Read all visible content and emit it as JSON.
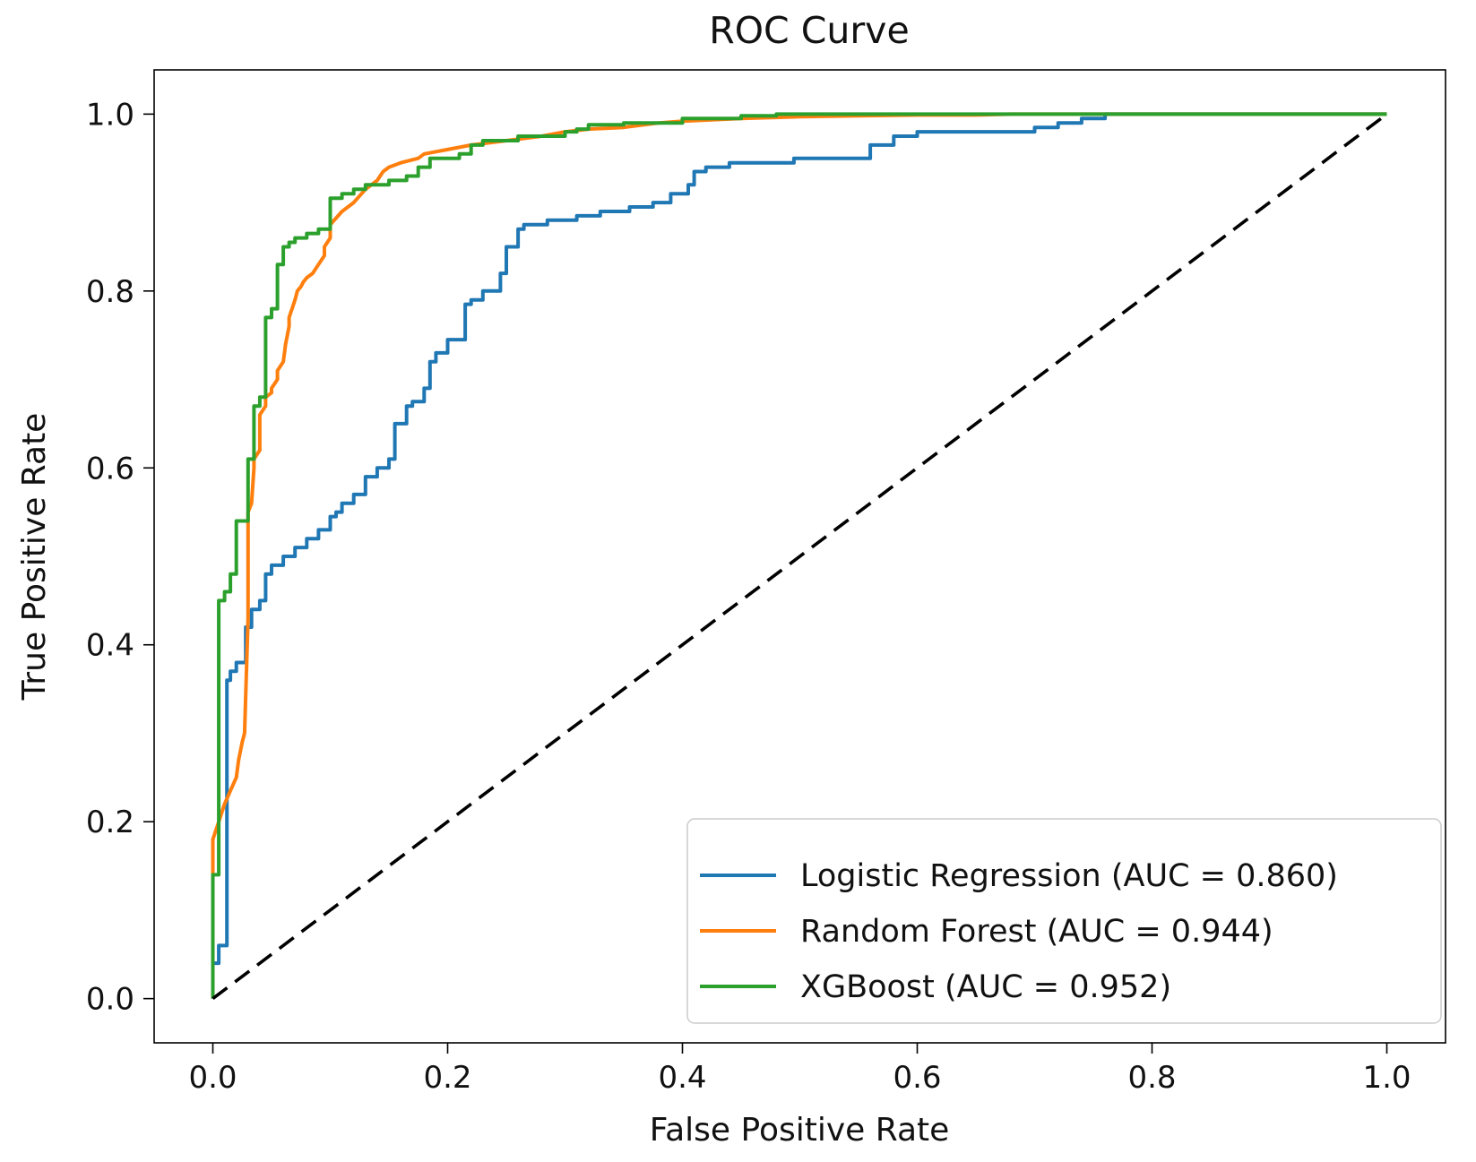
{
  "chart_data": {
    "type": "line",
    "title": "ROC Curve",
    "xlabel": "False Positive Rate",
    "ylabel": "True Positive Rate",
    "xlim": [
      -0.05,
      1.05
    ],
    "ylim": [
      -0.05,
      1.05
    ],
    "xticks": [
      "0.0",
      "0.2",
      "0.4",
      "0.6",
      "0.8",
      "1.0"
    ],
    "yticks": [
      "0.0",
      "0.2",
      "0.4",
      "0.6",
      "0.8",
      "1.0"
    ],
    "xtick_values": [
      0,
      0.2,
      0.4,
      0.6,
      0.8,
      1.0
    ],
    "ytick_values": [
      0,
      0.2,
      0.4,
      0.6,
      0.8,
      1.0
    ],
    "grid": false,
    "legend_position": "lower-right",
    "reference_line": {
      "x": [
        0,
        1
      ],
      "y": [
        0,
        1
      ],
      "style": "dashed",
      "color": "#000000"
    },
    "series": [
      {
        "name": "Logistic Regression (AUC = 0.860)",
        "color": "#1f77b4",
        "x": [
          0,
          0,
          0.005,
          0.005,
          0.012,
          0.012,
          0.015,
          0.015,
          0.02,
          0.02,
          0.028,
          0.028,
          0.033,
          0.033,
          0.04,
          0.04,
          0.045,
          0.045,
          0.05,
          0.05,
          0.06,
          0.06,
          0.07,
          0.07,
          0.08,
          0.08,
          0.09,
          0.09,
          0.1,
          0.1,
          0.105,
          0.105,
          0.11,
          0.11,
          0.12,
          0.12,
          0.13,
          0.13,
          0.14,
          0.14,
          0.15,
          0.15,
          0.155,
          0.155,
          0.165,
          0.165,
          0.17,
          0.17,
          0.18,
          0.18,
          0.185,
          0.185,
          0.19,
          0.19,
          0.2,
          0.2,
          0.215,
          0.215,
          0.22,
          0.22,
          0.23,
          0.23,
          0.245,
          0.245,
          0.25,
          0.25,
          0.26,
          0.26,
          0.265,
          0.265,
          0.285,
          0.285,
          0.31,
          0.31,
          0.33,
          0.33,
          0.355,
          0.355,
          0.375,
          0.375,
          0.39,
          0.39,
          0.405,
          0.405,
          0.41,
          0.41,
          0.42,
          0.42,
          0.44,
          0.44,
          0.495,
          0.495,
          0.56,
          0.56,
          0.58,
          0.58,
          0.6,
          0.6,
          0.7,
          0.7,
          0.72,
          0.72,
          0.74,
          0.74,
          0.76,
          0.76,
          0.8,
          0.85,
          1.0
        ],
        "y": [
          0,
          0.04,
          0.04,
          0.06,
          0.06,
          0.36,
          0.36,
          0.37,
          0.37,
          0.38,
          0.38,
          0.42,
          0.42,
          0.44,
          0.44,
          0.45,
          0.45,
          0.48,
          0.48,
          0.49,
          0.49,
          0.5,
          0.5,
          0.51,
          0.51,
          0.52,
          0.52,
          0.53,
          0.53,
          0.545,
          0.545,
          0.55,
          0.55,
          0.56,
          0.56,
          0.57,
          0.57,
          0.59,
          0.59,
          0.6,
          0.6,
          0.61,
          0.61,
          0.65,
          0.65,
          0.67,
          0.67,
          0.675,
          0.675,
          0.69,
          0.69,
          0.72,
          0.72,
          0.73,
          0.73,
          0.745,
          0.745,
          0.785,
          0.785,
          0.79,
          0.79,
          0.8,
          0.8,
          0.82,
          0.82,
          0.85,
          0.85,
          0.87,
          0.87,
          0.875,
          0.875,
          0.88,
          0.88,
          0.885,
          0.885,
          0.89,
          0.89,
          0.895,
          0.895,
          0.9,
          0.9,
          0.91,
          0.91,
          0.92,
          0.92,
          0.935,
          0.935,
          0.94,
          0.94,
          0.945,
          0.945,
          0.95,
          0.95,
          0.965,
          0.965,
          0.975,
          0.975,
          0.98,
          0.98,
          0.985,
          0.985,
          0.99,
          0.99,
          0.995,
          0.995,
          1.0,
          1.0,
          1.0,
          1.0
        ]
      },
      {
        "name": "Random Forest (AUC = 0.944)",
        "color": "#ff7f0e",
        "x": [
          0,
          0,
          0.005,
          0.01,
          0.015,
          0.02,
          0.022,
          0.025,
          0.027,
          0.03,
          0.03,
          0.033,
          0.035,
          0.035,
          0.04,
          0.04,
          0.045,
          0.045,
          0.05,
          0.05,
          0.055,
          0.055,
          0.06,
          0.062,
          0.065,
          0.065,
          0.07,
          0.072,
          0.075,
          0.077,
          0.08,
          0.085,
          0.09,
          0.095,
          0.095,
          0.1,
          0.1,
          0.11,
          0.12,
          0.13,
          0.14,
          0.145,
          0.15,
          0.16,
          0.175,
          0.18,
          0.2,
          0.22,
          0.25,
          0.28,
          0.3,
          0.32,
          0.35,
          0.38,
          0.4,
          0.45,
          0.5,
          0.55,
          0.6,
          0.65,
          0.68,
          0.7,
          0.8,
          0.9,
          1.0
        ],
        "y": [
          0,
          0.18,
          0.2,
          0.22,
          0.235,
          0.25,
          0.27,
          0.29,
          0.3,
          0.43,
          0.55,
          0.56,
          0.6,
          0.61,
          0.62,
          0.66,
          0.67,
          0.68,
          0.685,
          0.69,
          0.7,
          0.71,
          0.72,
          0.74,
          0.76,
          0.77,
          0.79,
          0.8,
          0.805,
          0.81,
          0.815,
          0.82,
          0.83,
          0.84,
          0.85,
          0.86,
          0.875,
          0.89,
          0.9,
          0.915,
          0.925,
          0.935,
          0.94,
          0.945,
          0.95,
          0.955,
          0.96,
          0.965,
          0.97,
          0.975,
          0.98,
          0.983,
          0.985,
          0.99,
          0.992,
          0.995,
          0.997,
          0.998,
          0.999,
          0.999,
          1.0,
          1.0,
          1.0,
          1.0,
          1.0
        ]
      },
      {
        "name": "XGBoost (AUC = 0.952)",
        "color": "#2ca02c",
        "x": [
          0,
          0,
          0.005,
          0.005,
          0.01,
          0.01,
          0.015,
          0.015,
          0.02,
          0.02,
          0.03,
          0.03,
          0.035,
          0.035,
          0.04,
          0.04,
          0.045,
          0.045,
          0.05,
          0.05,
          0.055,
          0.055,
          0.06,
          0.06,
          0.065,
          0.065,
          0.07,
          0.07,
          0.08,
          0.08,
          0.09,
          0.09,
          0.1,
          0.1,
          0.11,
          0.11,
          0.12,
          0.12,
          0.13,
          0.13,
          0.15,
          0.15,
          0.165,
          0.165,
          0.175,
          0.175,
          0.185,
          0.185,
          0.21,
          0.21,
          0.22,
          0.22,
          0.23,
          0.23,
          0.26,
          0.26,
          0.3,
          0.3,
          0.31,
          0.31,
          0.32,
          0.32,
          0.35,
          0.35,
          0.4,
          0.4,
          0.45,
          0.45,
          0.48,
          0.48,
          0.6,
          0.7,
          0.8,
          1.0
        ],
        "y": [
          0,
          0.14,
          0.14,
          0.45,
          0.45,
          0.46,
          0.46,
          0.48,
          0.48,
          0.54,
          0.54,
          0.61,
          0.61,
          0.67,
          0.67,
          0.68,
          0.68,
          0.77,
          0.77,
          0.78,
          0.78,
          0.83,
          0.83,
          0.85,
          0.85,
          0.855,
          0.855,
          0.86,
          0.86,
          0.865,
          0.865,
          0.87,
          0.87,
          0.905,
          0.905,
          0.91,
          0.91,
          0.915,
          0.915,
          0.92,
          0.92,
          0.925,
          0.925,
          0.93,
          0.93,
          0.94,
          0.94,
          0.95,
          0.95,
          0.955,
          0.955,
          0.965,
          0.965,
          0.97,
          0.97,
          0.975,
          0.975,
          0.98,
          0.98,
          0.983,
          0.983,
          0.988,
          0.988,
          0.99,
          0.99,
          0.995,
          0.995,
          0.998,
          0.998,
          1.0,
          1.0,
          1.0,
          1.0,
          1.0
        ]
      }
    ]
  }
}
